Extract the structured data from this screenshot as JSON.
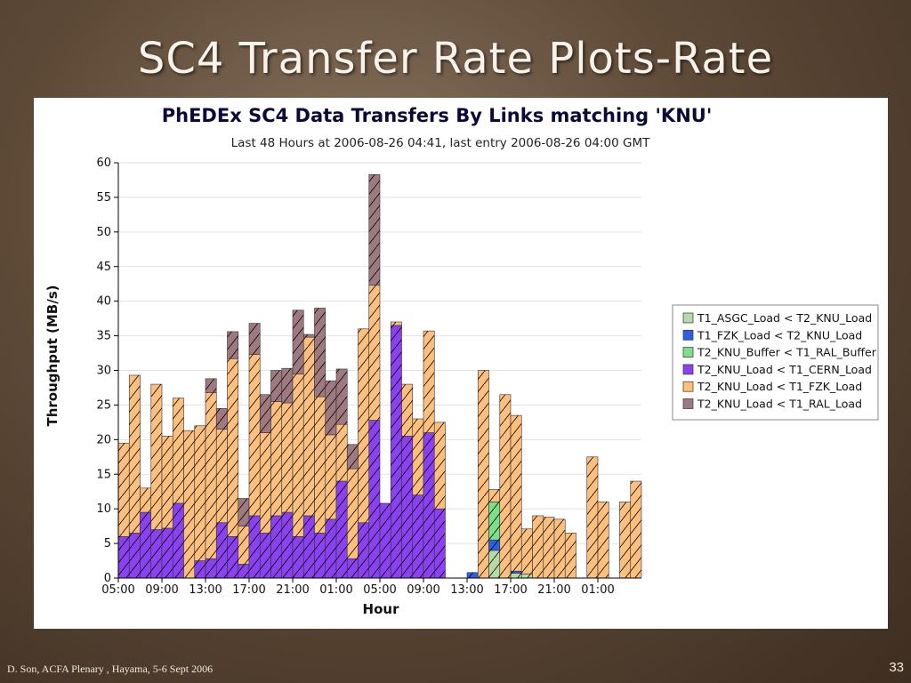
{
  "slide": {
    "title": "SC4 Transfer Rate Plots-Rate",
    "footer": "D. Son, ACFA Plenary , Hayama, 5-6 Sept 2006",
    "page_number": "33"
  },
  "chart_data": {
    "type": "bar",
    "stacked": true,
    "title": "PhEDEx SC4 Data Transfers By Links matching 'KNU'",
    "subtitle": "Last 48 Hours at 2006-08-26 04:41, last entry 2006-08-26 04:00 GMT",
    "xlabel": "Hour",
    "ylabel": "Throughput (MB/s)",
    "ylim": [
      0,
      60
    ],
    "yticks": [
      0,
      5,
      10,
      15,
      20,
      25,
      30,
      35,
      40,
      45,
      50,
      55,
      60
    ],
    "xtick_labels": [
      "05:00",
      "09:00",
      "13:00",
      "17:00",
      "21:00",
      "01:00",
      "05:00",
      "09:00",
      "13:00",
      "17:00",
      "21:00",
      "01:00"
    ],
    "xtick_hour_index": [
      0,
      4,
      8,
      12,
      16,
      20,
      24,
      28,
      32,
      36,
      40,
      44
    ],
    "hours": 48,
    "grid": true,
    "legend_position": "right",
    "series": [
      {
        "name": "T1_ASGC_Load < T2_KNU_Load",
        "color": "#b7d9a7",
        "values": [
          0,
          0,
          0,
          0,
          0,
          0,
          0,
          0,
          0,
          0,
          0,
          0,
          0,
          0,
          0,
          0,
          0,
          0,
          0,
          0,
          0,
          0,
          0,
          0,
          0,
          0,
          0,
          0,
          0,
          0,
          0,
          0,
          0,
          0,
          4,
          0,
          0.7,
          0.6,
          0,
          0,
          0,
          0,
          0,
          0,
          0,
          0,
          0,
          0
        ]
      },
      {
        "name": "T1_FZK_Load < T2_KNU_Load",
        "color": "#2f5fe0",
        "values": [
          0,
          0,
          0,
          0,
          0,
          0,
          0,
          0,
          0,
          0,
          0,
          0,
          0,
          0,
          0,
          0,
          0,
          0,
          0,
          0,
          0,
          0,
          0,
          0,
          0,
          0,
          0,
          0,
          0,
          0,
          0,
          0,
          0.8,
          0,
          1.5,
          0,
          0.3,
          0,
          0,
          0,
          0,
          0,
          0,
          0,
          0,
          0,
          0,
          0
        ]
      },
      {
        "name": "T2_KNU_Buffer < T1_RAL_Buffer",
        "color": "#7be08a",
        "values": [
          0,
          0,
          0,
          0,
          0,
          0,
          0,
          0,
          0,
          0,
          0,
          0,
          0,
          0,
          0,
          0,
          0,
          0,
          0,
          0,
          0,
          0,
          0,
          0,
          0,
          0,
          0,
          0,
          0,
          0,
          0,
          0,
          0,
          0,
          5.5,
          0,
          0,
          0,
          0,
          0,
          0,
          0,
          0,
          0,
          0,
          0,
          0,
          0
        ]
      },
      {
        "name": "T2_KNU_Load < T1_CERN_Load",
        "color": "#8a42f0",
        "values": [
          6,
          6.5,
          9.5,
          7,
          7.2,
          10.8,
          0,
          2.5,
          2.8,
          8,
          6,
          2,
          9,
          6.5,
          9,
          9.5,
          6,
          9,
          6.5,
          8.5,
          14,
          2.8,
          8,
          22.8,
          10.8,
          36.5,
          20.5,
          12,
          21,
          10,
          0,
          0,
          0,
          0,
          0,
          0,
          0,
          0,
          0,
          0,
          0,
          0,
          0,
          0,
          0,
          0,
          0,
          0
        ]
      },
      {
        "name": "T2_KNU_Load < T1_FZK_Load",
        "color": "#fcbf7e",
        "values": [
          13.5,
          22.8,
          3.5,
          21,
          13.3,
          15.2,
          21.3,
          19.5,
          24,
          13.5,
          25.7,
          5.5,
          23.3,
          14.5,
          16.5,
          15.8,
          23.5,
          25.8,
          19.7,
          12.2,
          8.2,
          13,
          28,
          19.5,
          0,
          0.5,
          7.5,
          11,
          14.7,
          12.5,
          0,
          0,
          0,
          30,
          1.8,
          26.5,
          22.5,
          6.5,
          9,
          8.8,
          8.5,
          6.5,
          0,
          17.5,
          11,
          0,
          11,
          14
        ]
      },
      {
        "name": "T2_KNU_Load < T1_RAL_Load",
        "color": "#9e7a80",
        "values": [
          0,
          0,
          0,
          0,
          0,
          0,
          0,
          0,
          2,
          3,
          3.9,
          4,
          4.5,
          5.5,
          4.5,
          5,
          9.2,
          0.4,
          12.8,
          7.8,
          8,
          3.5,
          0,
          16,
          0,
          0,
          0,
          0,
          0,
          0,
          0,
          0,
          0,
          0,
          0,
          0,
          0,
          0,
          0,
          0,
          0,
          0,
          0,
          0,
          0,
          0,
          0,
          0
        ]
      }
    ]
  }
}
